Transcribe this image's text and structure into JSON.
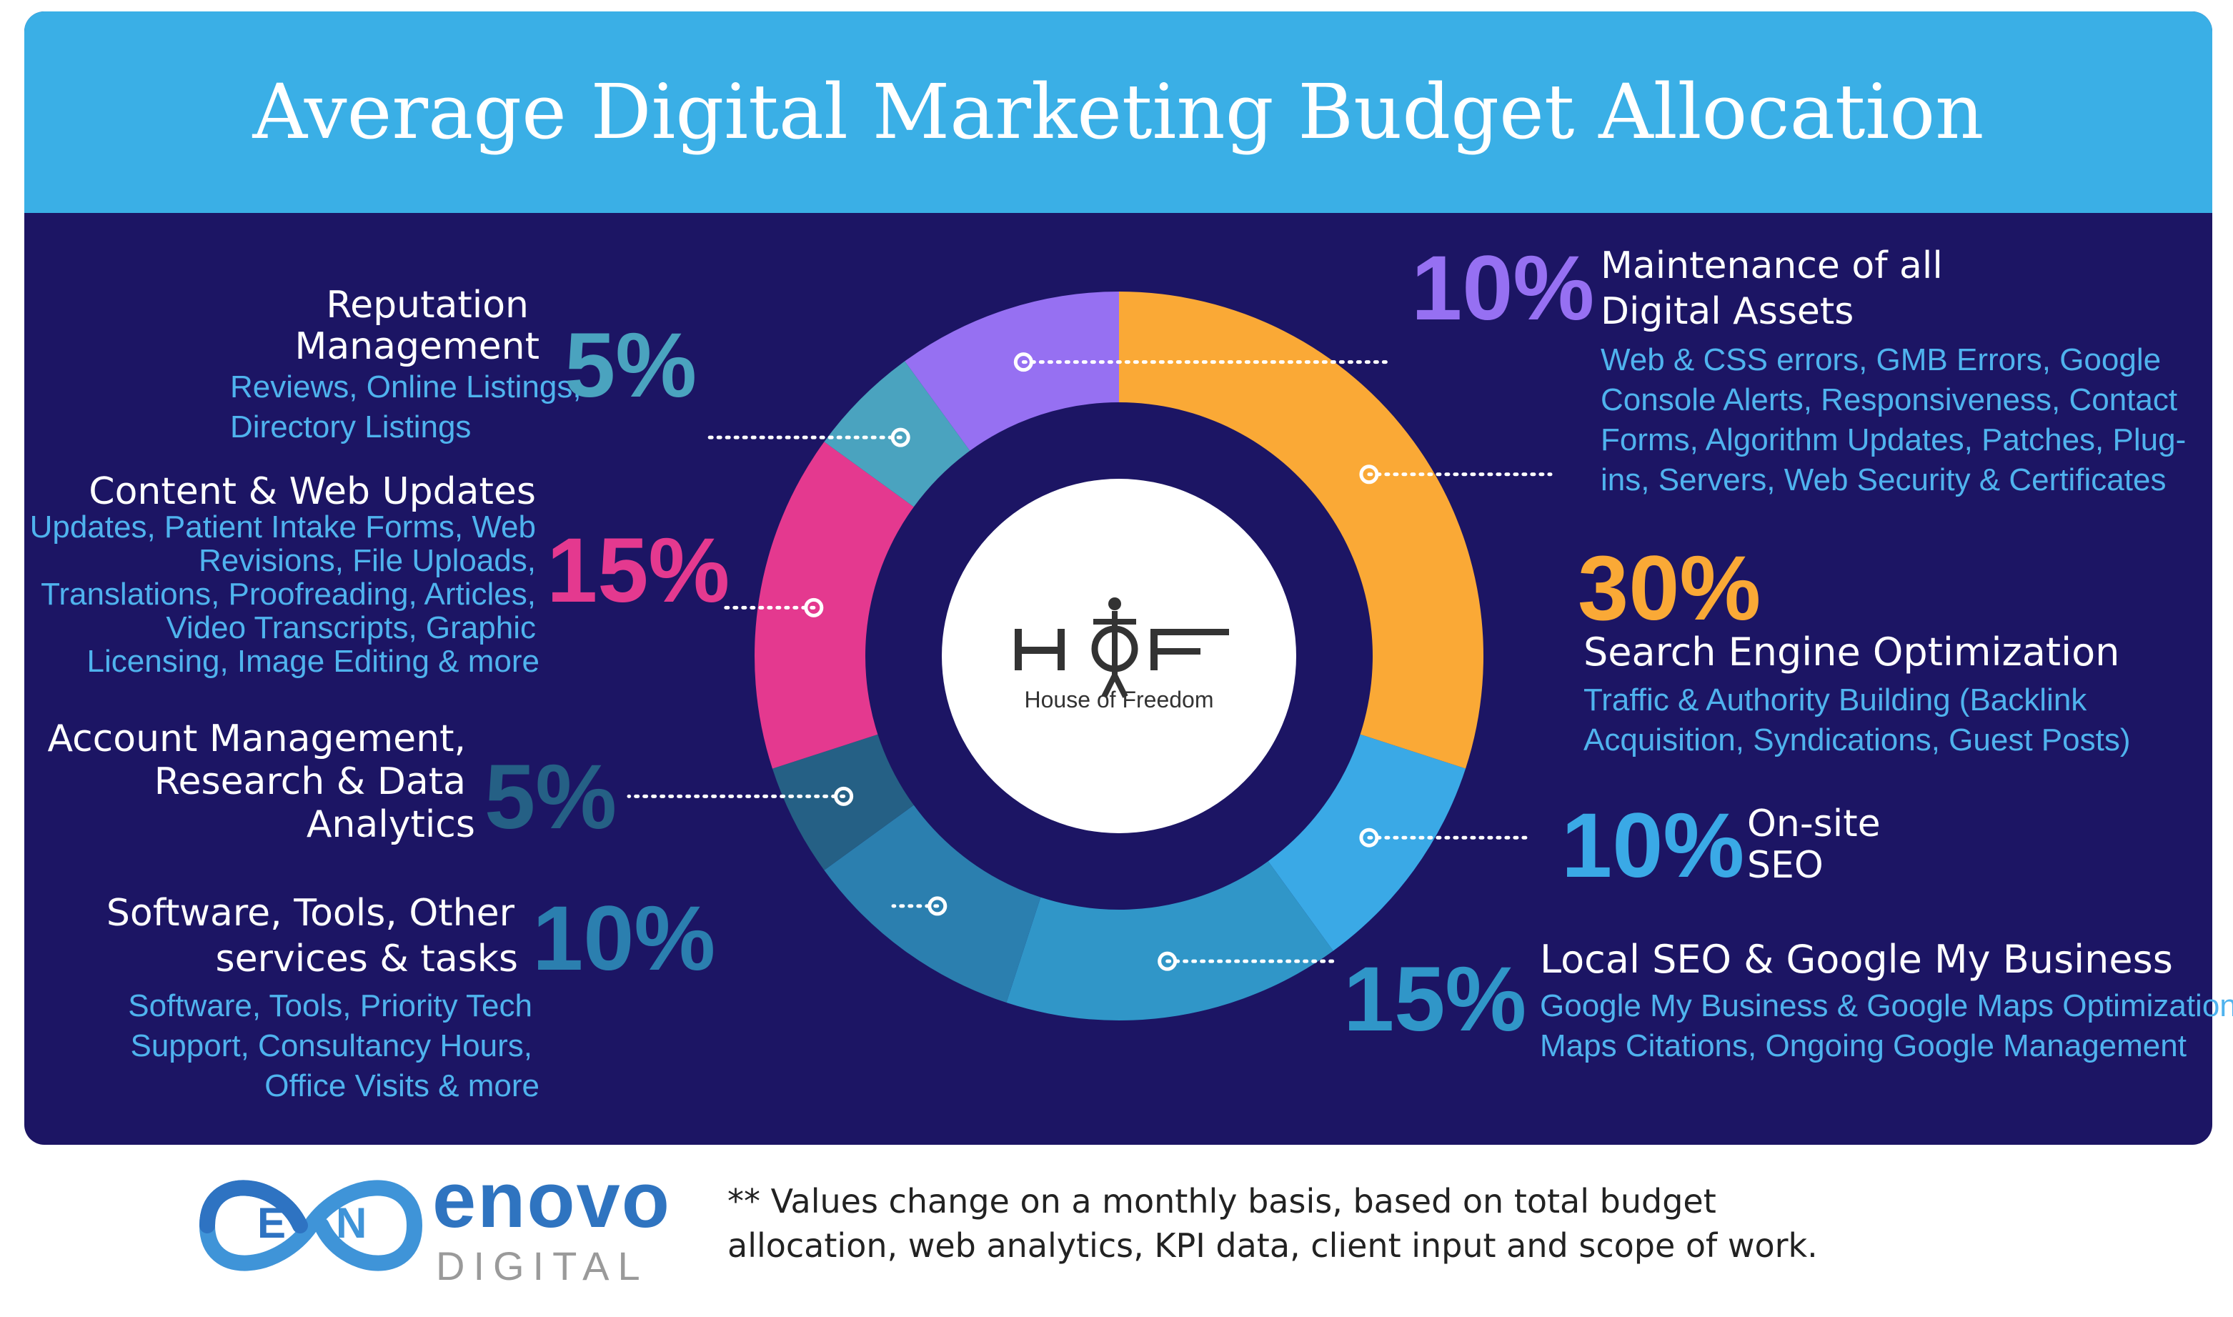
{
  "header": {
    "title": "Average Digital Marketing Budget Allocation"
  },
  "center_logo": {
    "monogram": "HOF",
    "name": "House of Freedom"
  },
  "chart_data": {
    "type": "pie",
    "title": "Average Digital Marketing Budget Allocation",
    "unit": "%",
    "slices": [
      {
        "label": "Search Engine Optimization",
        "value": 30,
        "percent_label": "30%",
        "color": "#faa936",
        "description": "Traffic & Authority Building (Backlink Acquisition, Syndications, Guest Posts)"
      },
      {
        "label": "On-site SEO",
        "value": 10,
        "percent_label": "10%",
        "color": "#3aa9e6",
        "description": ""
      },
      {
        "label": "Local SEO & Google My Business",
        "value": 15,
        "percent_label": "15%",
        "color": "#3096c8",
        "description": "Google My Business & Google Maps Optimization, Maps Citations, Ongoing Google Management"
      },
      {
        "label": "Software, Tools, Other services & tasks",
        "value": 10,
        "percent_label": "10%",
        "color": "#2b7faf",
        "description": "Software, Tools, Priority Tech Support, Consultancy Hours, Office Visits & more"
      },
      {
        "label": "Account Management, Research & Data Analytics",
        "value": 5,
        "percent_label": "5%",
        "color": "#256085",
        "description": ""
      },
      {
        "label": "Content & Web Updates",
        "value": 15,
        "percent_label": "15%",
        "color": "#e4398f",
        "description": "Updates, Patient Intake Forms, Web Revisions, File Uploads, Translations, Proofreading, Articles, Video Transcripts, Graphic Licensing, Image Editing & more"
      },
      {
        "label": "Reputation Management",
        "value": 5,
        "percent_label": "5%",
        "color": "#4aa3bf",
        "description": "Reviews, Online Listings, Directory Listings"
      },
      {
        "label": "Maintenance of all Digital Assets",
        "value": 10,
        "percent_label": "10%",
        "color": "#9670f2",
        "description": "Web & CSS errors, GMB Errors, Google Console Alerts, Responsiveness, Contact Forms, Algorithm Updates, Patches, Plug-ins, Servers, Web Security & Certificates"
      }
    ]
  },
  "labels": {
    "maint": {
      "pct": "10%",
      "l1": "Maintenance of all",
      "l2": "Digital Assets",
      "s1": "Web & CSS errors, GMB Errors, Google",
      "s2": "Console Alerts, Responsiveness, Contact",
      "s3": "Forms, Algorithm Updates, Patches, Plug-",
      "s4": "ins, Servers, Web Security & Certificates"
    },
    "seo": {
      "pct": "30%",
      "l1": "Search Engine Optimization",
      "s1": "Traffic & Authority Building (Backlink",
      "s2": "Acquisition, Syndications, Guest Posts)"
    },
    "onsite": {
      "pct": "10%",
      "l1": "On-site",
      "l2": "SEO"
    },
    "local": {
      "pct": "15%",
      "l1": "Local SEO & Google My Business",
      "s1": "Google My Business & Google Maps Optimization,",
      "s2": "Maps Citations, Ongoing Google Management"
    },
    "software": {
      "pct": "10%",
      "l1": "Software, Tools, Other",
      "l2": "services & tasks",
      "s1": "Software, Tools, Priority Tech",
      "s2": "Support, Consultancy Hours,",
      "s3": "Office Visits & more"
    },
    "account": {
      "pct": "5%",
      "l1": "Account Management,",
      "l2": "Research & Data",
      "l3": "Analytics"
    },
    "content": {
      "pct": "15%",
      "l1": "Content & Web Updates",
      "s1": "Updates, Patient Intake Forms, Web",
      "s2": "Revisions, File Uploads,",
      "s3": "Translations, Proofreading, Articles,",
      "s4": "Video Transcripts, Graphic",
      "s5": "Licensing, Image Editing & more"
    },
    "reputation": {
      "pct": "5%",
      "l1": "Reputation",
      "l2": "Management",
      "s1": "Reviews, Online Listings,",
      "s2": "Directory Listings"
    }
  },
  "footer": {
    "note_line1": "** Values change on a monthly basis, based on total budget",
    "note_line2": "allocation, web analytics, KPI data, client input and scope of work.",
    "brand_top": "enovo",
    "brand_bottom": "DIGITAL"
  },
  "colors": {
    "panel": "#1c1564",
    "header": "#3aafe6",
    "subtext": "#4fb3ee"
  }
}
